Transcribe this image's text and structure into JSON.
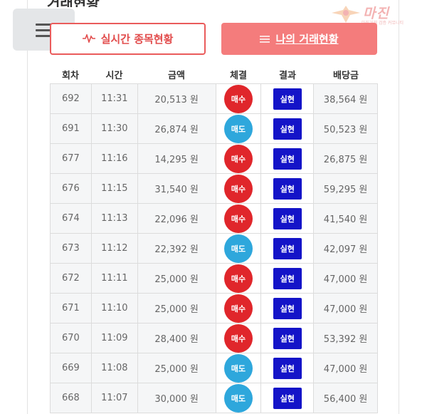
{
  "header": {
    "section_title": "거래현황",
    "logo_text": "마진",
    "logo_sub": "마진거래 검증 커뮤니티"
  },
  "menu": {
    "icon": "hamburger-icon"
  },
  "tabs": [
    {
      "label": "실시간 종목현황",
      "icon": "pulse-icon",
      "active": false
    },
    {
      "label": "나의 거래현황",
      "icon": "lines-icon",
      "active": true
    }
  ],
  "colors": {
    "accent": "#ea5b5b",
    "buy": "#e0262b",
    "sell": "#2ea7dc",
    "result_badge": "#1414c8"
  },
  "table": {
    "headers": [
      "회차",
      "시간",
      "금액",
      "체결",
      "결과",
      "배당금"
    ],
    "rows": [
      {
        "round": "692",
        "time": "11:31",
        "amount": "20,513 원",
        "type": "매수",
        "side": "buy",
        "result": "실현",
        "payout": "38,564 원"
      },
      {
        "round": "691",
        "time": "11:30",
        "amount": "26,874 원",
        "type": "매도",
        "side": "sell",
        "result": "실현",
        "payout": "50,523 원"
      },
      {
        "round": "677",
        "time": "11:16",
        "amount": "14,295 원",
        "type": "매수",
        "side": "buy",
        "result": "실현",
        "payout": "26,875 원"
      },
      {
        "round": "676",
        "time": "11:15",
        "amount": "31,540 원",
        "type": "매수",
        "side": "buy",
        "result": "실현",
        "payout": "59,295 원"
      },
      {
        "round": "674",
        "time": "11:13",
        "amount": "22,096 원",
        "type": "매수",
        "side": "buy",
        "result": "실현",
        "payout": "41,540 원"
      },
      {
        "round": "673",
        "time": "11:12",
        "amount": "22,392 원",
        "type": "매도",
        "side": "sell",
        "result": "실현",
        "payout": "42,097 원"
      },
      {
        "round": "672",
        "time": "11:11",
        "amount": "25,000 원",
        "type": "매수",
        "side": "buy",
        "result": "실현",
        "payout": "47,000 원"
      },
      {
        "round": "671",
        "time": "11:10",
        "amount": "25,000 원",
        "type": "매수",
        "side": "buy",
        "result": "실현",
        "payout": "47,000 원"
      },
      {
        "round": "670",
        "time": "11:09",
        "amount": "28,400 원",
        "type": "매수",
        "side": "buy",
        "result": "실현",
        "payout": "53,392 원"
      },
      {
        "round": "669",
        "time": "11:08",
        "amount": "25,000 원",
        "type": "매도",
        "side": "sell",
        "result": "실현",
        "payout": "47,000 원"
      },
      {
        "round": "668",
        "time": "11:07",
        "amount": "30,000 원",
        "type": "매도",
        "side": "sell",
        "result": "실현",
        "payout": "56,400 원"
      }
    ]
  }
}
